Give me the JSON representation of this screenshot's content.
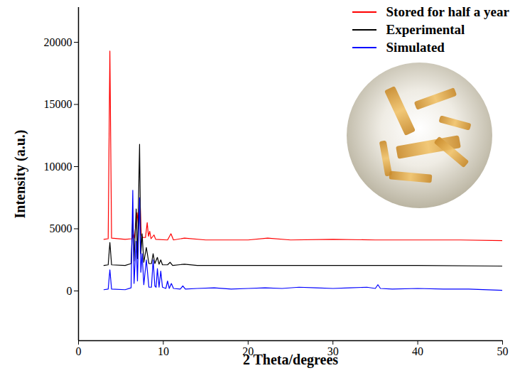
{
  "chart_data": {
    "type": "line",
    "x_label": "2 Theta/degrees",
    "y_label": "Intensity (a.u.)",
    "xlim": [
      0,
      50
    ],
    "xticks": [
      0,
      10,
      20,
      30,
      40,
      50
    ],
    "ylim": [
      -4000,
      22800
    ],
    "yticks": [
      0,
      5000,
      10000,
      15000,
      20000
    ],
    "grid": false,
    "legend": "top-right",
    "series": [
      {
        "name": "Stored for half a year",
        "color": "#ff0000",
        "x": [
          3.0,
          3.5,
          3.7,
          3.9,
          5.5,
          6.3,
          6.45,
          6.6,
          6.9,
          7.1,
          7.25,
          7.4,
          7.6,
          7.9,
          8.1,
          8.25,
          8.4,
          8.55,
          8.9,
          9.1,
          10.5,
          10.9,
          11.2,
          12.5,
          15,
          20,
          22.3,
          25,
          30,
          35,
          40,
          45,
          50
        ],
        "values": [
          4150,
          4200,
          19300,
          4250,
          4150,
          4200,
          4600,
          4250,
          6300,
          5000,
          7300,
          4500,
          4300,
          4300,
          5500,
          4400,
          4800,
          4200,
          4500,
          4150,
          4100,
          4600,
          4100,
          4250,
          4100,
          4100,
          4250,
          4100,
          4150,
          4100,
          4100,
          4100,
          4050
        ]
      },
      {
        "name": "Experimental",
        "color": "#000000",
        "x": [
          3.0,
          3.5,
          3.7,
          3.9,
          5.5,
          6.2,
          6.4,
          6.55,
          6.8,
          6.95,
          7.2,
          7.35,
          7.5,
          7.7,
          8.0,
          8.3,
          8.6,
          8.8,
          9.0,
          9.3,
          9.5,
          9.7,
          9.9,
          10.5,
          10.8,
          11.1,
          12.5,
          14,
          20,
          30,
          40,
          50
        ],
        "values": [
          2050,
          2100,
          3900,
          2100,
          2050,
          2200,
          6000,
          2400,
          6600,
          2600,
          11800,
          3000,
          4600,
          2300,
          3500,
          2200,
          2200,
          3000,
          2200,
          2700,
          2150,
          2500,
          2100,
          2100,
          2300,
          2050,
          2150,
          2050,
          2050,
          2050,
          2050,
          2000
        ]
      },
      {
        "name": "Simulated",
        "color": "#0000ff",
        "x": [
          3.0,
          3.5,
          3.7,
          3.9,
          5.5,
          6.2,
          6.4,
          6.55,
          6.8,
          6.95,
          7.2,
          7.35,
          7.5,
          7.7,
          8.0,
          8.3,
          8.6,
          8.8,
          9.0,
          9.15,
          9.3,
          9.5,
          9.7,
          9.9,
          10.3,
          10.5,
          10.7,
          10.95,
          11.2,
          12.0,
          12.3,
          12.6,
          14,
          16,
          18,
          20,
          22,
          24,
          26,
          28,
          30,
          32,
          34,
          35.0,
          35.3,
          35.6,
          37,
          40,
          43,
          46,
          50
        ],
        "values": [
          100,
          150,
          1700,
          150,
          100,
          250,
          8100,
          600,
          4000,
          800,
          7500,
          1500,
          3000,
          500,
          2500,
          300,
          300,
          2500,
          400,
          300,
          1800,
          300,
          1600,
          300,
          200,
          800,
          200,
          600,
          200,
          150,
          400,
          150,
          200,
          250,
          150,
          200,
          250,
          200,
          300,
          250,
          200,
          250,
          300,
          200,
          500,
          200,
          150,
          200,
          150,
          150,
          50
        ]
      }
    ]
  }
}
